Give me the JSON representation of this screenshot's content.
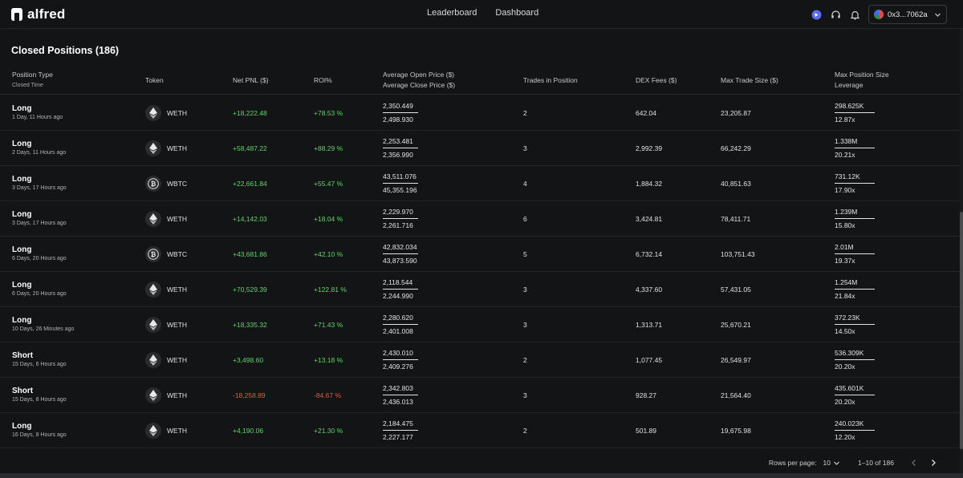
{
  "nav": {
    "logo_text": "alfred",
    "links": [
      "Leaderboard",
      "Dashboard"
    ],
    "wallet": "0x3...7062a"
  },
  "title": "Closed Positions (186)",
  "headers": {
    "position_type": "Position Type",
    "closed_time": "Closed Time",
    "token": "Token",
    "net_pnl": "Net PNL ($)",
    "roi": "ROI%",
    "avg_open": "Average Open Price ($)",
    "avg_close": "Average Close Price ($)",
    "trades": "Trades in Position",
    "dex_fees": "DEX Fees ($)",
    "max_trade": "Max Trade Size ($)",
    "max_pos": "Max Position Size",
    "leverage": "Leverage"
  },
  "rows": [
    {
      "type": "Long",
      "time": "1 Day, 11 Hours ago",
      "token": "WETH",
      "pnl": "+18,222.48",
      "roi": "+78.53 %",
      "open": "2,350.449",
      "close": "2,498.930",
      "trades": "2",
      "fees": "642.04",
      "max_trade": "23,205.87",
      "max_pos": "298.625K",
      "leverage": "12.87x",
      "sign": "pos"
    },
    {
      "type": "Long",
      "time": "2 Days, 11 Hours ago",
      "token": "WETH",
      "pnl": "+58,487.22",
      "roi": "+88.29 %",
      "open": "2,253.481",
      "close": "2,356.990",
      "trades": "3",
      "fees": "2,992.39",
      "max_trade": "66,242.29",
      "max_pos": "1.338M",
      "leverage": "20.21x",
      "sign": "pos"
    },
    {
      "type": "Long",
      "time": "3 Days, 17 Hours ago",
      "token": "WBTC",
      "pnl": "+22,661.84",
      "roi": "+55.47 %",
      "open": "43,511.076",
      "close": "45,355.196",
      "trades": "4",
      "fees": "1,884.32",
      "max_trade": "40,851.63",
      "max_pos": "731.12K",
      "leverage": "17.90x",
      "sign": "pos"
    },
    {
      "type": "Long",
      "time": "3 Days, 17 Hours ago",
      "token": "WETH",
      "pnl": "+14,142.03",
      "roi": "+18.04 %",
      "open": "2,229.970",
      "close": "2,261.716",
      "trades": "6",
      "fees": "3,424.81",
      "max_trade": "78,411.71",
      "max_pos": "1.239M",
      "leverage": "15.80x",
      "sign": "pos"
    },
    {
      "type": "Long",
      "time": "6 Days, 20 Hours ago",
      "token": "WBTC",
      "pnl": "+43,681.86",
      "roi": "+42.10 %",
      "open": "42,832.034",
      "close": "43,873.590",
      "trades": "5",
      "fees": "6,732.14",
      "max_trade": "103,751.43",
      "max_pos": "2.01M",
      "leverage": "19.37x",
      "sign": "pos"
    },
    {
      "type": "Long",
      "time": "6 Days, 20 Hours ago",
      "token": "WETH",
      "pnl": "+70,529.39",
      "roi": "+122.81 %",
      "open": "2,118.544",
      "close": "2,244.990",
      "trades": "3",
      "fees": "4,337.60",
      "max_trade": "57,431.05",
      "max_pos": "1.254M",
      "leverage": "21.84x",
      "sign": "pos"
    },
    {
      "type": "Long",
      "time": "10 Days, 26 Minutes ago",
      "token": "WETH",
      "pnl": "+18,335.32",
      "roi": "+71.43 %",
      "open": "2,280.620",
      "close": "2,401.008",
      "trades": "3",
      "fees": "1,313.71",
      "max_trade": "25,670.21",
      "max_pos": "372.23K",
      "leverage": "14.50x",
      "sign": "pos"
    },
    {
      "type": "Short",
      "time": "15 Days, 6 Hours ago",
      "token": "WETH",
      "pnl": "+3,498.60",
      "roi": "+13.18 %",
      "open": "2,430.010",
      "close": "2,409.276",
      "trades": "2",
      "fees": "1,077.45",
      "max_trade": "26,549.97",
      "max_pos": "536.309K",
      "leverage": "20.20x",
      "sign": "pos"
    },
    {
      "type": "Short",
      "time": "15 Days, 8 Hours ago",
      "token": "WETH",
      "pnl": "-18,258.89",
      "roi": "-84.67 %",
      "open": "2,342.803",
      "close": "2,436.013",
      "trades": "3",
      "fees": "928.27",
      "max_trade": "21,564.40",
      "max_pos": "435.601K",
      "leverage": "20.20x",
      "sign": "neg"
    },
    {
      "type": "Long",
      "time": "16 Days, 8 Hours ago",
      "token": "WETH",
      "pnl": "+4,190.06",
      "roi": "+21.30 %",
      "open": "2,184.475",
      "close": "2,227.177",
      "trades": "2",
      "fees": "501.89",
      "max_trade": "19,675.98",
      "max_pos": "240.023K",
      "leverage": "12.20x",
      "sign": "pos"
    }
  ],
  "pagination": {
    "rows_per_page_label": "Rows per page:",
    "rows_per_page": "10",
    "range": "1–10 of 186"
  },
  "colors": {
    "background": "#131416",
    "positive": "#5fd36a",
    "negative": "#e35b3a",
    "accent": "#5b6cf0"
  }
}
